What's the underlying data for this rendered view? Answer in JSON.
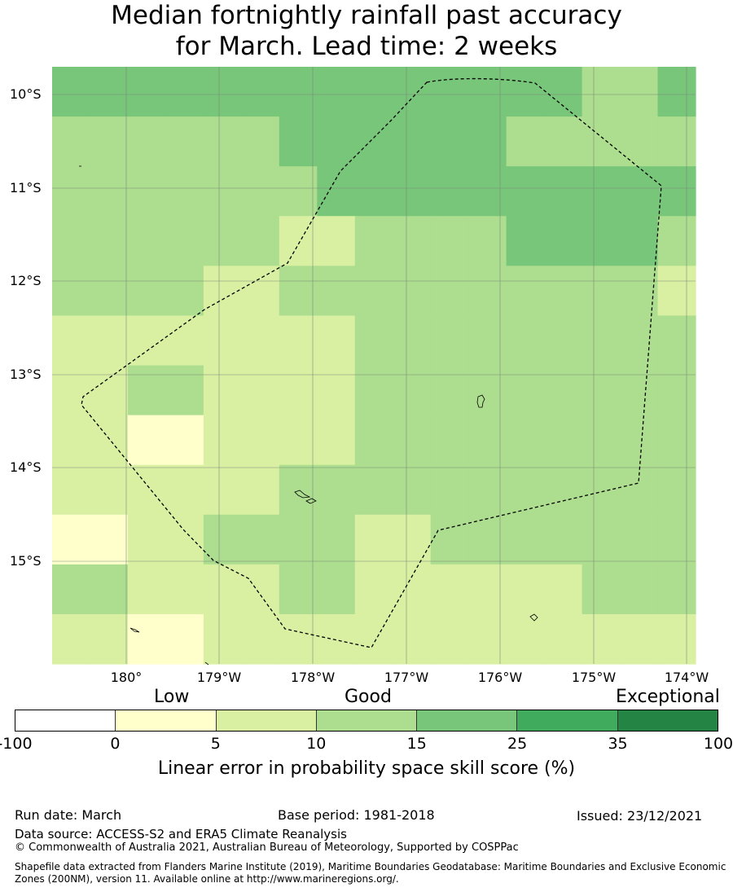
{
  "title": {
    "line1": "Median fortnightly rainfall past accuracy",
    "line2": "for March. Lead time: 2 weeks"
  },
  "map": {
    "lat_labels": [
      "10°S",
      "11°S",
      "12°S",
      "13°S",
      "14°S",
      "15°S"
    ],
    "lon_labels": [
      "180°",
      "179°W",
      "178°W",
      "177°W",
      "176°W",
      "175°W",
      "174°W"
    ],
    "grid_classes": [
      [
        3,
        3,
        3,
        3,
        3,
        3,
        3,
        3,
        3,
        3,
        3,
        3,
        3,
        3,
        2,
        2,
        3
      ],
      [
        2,
        2,
        2,
        2,
        2,
        2,
        3,
        3,
        3,
        3,
        3,
        3,
        2,
        2,
        2,
        2,
        2
      ],
      [
        2,
        2,
        2,
        2,
        2,
        2,
        2,
        3,
        3,
        3,
        3,
        3,
        3,
        3,
        3,
        3,
        3
      ],
      [
        2,
        2,
        2,
        2,
        2,
        2,
        1,
        1,
        2,
        2,
        2,
        2,
        3,
        3,
        3,
        3,
        2
      ],
      [
        2,
        2,
        2,
        2,
        1,
        1,
        2,
        2,
        2,
        2,
        2,
        2,
        2,
        2,
        2,
        2,
        1
      ],
      [
        1,
        1,
        1,
        1,
        1,
        1,
        1,
        1,
        2,
        2,
        2,
        2,
        2,
        2,
        2,
        2,
        2
      ],
      [
        1,
        1,
        2,
        2,
        1,
        1,
        1,
        1,
        2,
        2,
        2,
        2,
        2,
        2,
        2,
        2,
        2
      ],
      [
        1,
        1,
        0,
        0,
        1,
        1,
        1,
        1,
        2,
        2,
        2,
        2,
        2,
        2,
        2,
        2,
        2
      ],
      [
        1,
        1,
        1,
        1,
        1,
        1,
        2,
        2,
        2,
        2,
        2,
        2,
        2,
        2,
        2,
        2,
        2
      ],
      [
        0,
        0,
        1,
        1,
        2,
        2,
        2,
        2,
        1,
        1,
        2,
        2,
        2,
        2,
        2,
        2,
        2
      ],
      [
        2,
        2,
        1,
        1,
        1,
        1,
        2,
        2,
        1,
        1,
        1,
        1,
        1,
        1,
        2,
        2,
        2
      ],
      [
        1,
        1,
        0,
        0,
        1,
        1,
        1,
        1,
        1,
        1,
        1,
        1,
        1,
        1,
        1,
        1,
        1
      ]
    ],
    "colors": {
      "cell": [
        "#ffffcc",
        "#d9f0a3",
        "#addd8e",
        "#78c679"
      ],
      "boundary": "#000000",
      "grid": "#7a8a7a"
    }
  },
  "legend": {
    "categories": [
      "Low",
      "Good",
      "Exceptional"
    ],
    "ticks": [
      "-100",
      "0",
      "5",
      "10",
      "15",
      "25",
      "35",
      "100"
    ],
    "colors": [
      "#ffffff",
      "#ffffcc",
      "#d9f0a3",
      "#addd8e",
      "#78c679",
      "#41ab5d",
      "#238443"
    ],
    "label": "Linear error in probability space skill score (%)"
  },
  "footer": {
    "run_date": "Run date: March",
    "base_period": "Base period: 1981-2018",
    "issued": "Issued: 23/12/2021",
    "data_source": "Data source: ACCESS-S2 and ERA5 Climate Reanalysis",
    "copyright": "© Commonwealth of Australia 2021, Australian Bureau of Meteorology, Supported by COSPPac",
    "shapefile": "Shapefile data extracted from Flanders Marine Institute (2019), Maritime Boundaries Geodatabase: Maritime Boundaries and Exclusive Economic Zones (200NM), version 11. Available online at http://www.marineregions.org/."
  }
}
